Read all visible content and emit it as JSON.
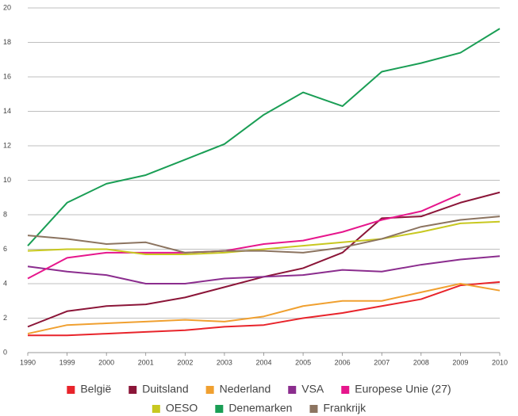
{
  "chart_data": {
    "type": "line",
    "categories": [
      "1990",
      "1999",
      "2000",
      "2001",
      "2002",
      "2003",
      "2004",
      "2005",
      "2006",
      "2007",
      "2008",
      "2009",
      "2010"
    ],
    "series": [
      {
        "name": "België",
        "color": "#e8242b",
        "values": [
          1.0,
          1.0,
          1.1,
          1.2,
          1.3,
          1.5,
          1.6,
          2.0,
          2.3,
          2.7,
          3.1,
          3.9,
          4.1
        ]
      },
      {
        "name": "Duitsland",
        "color": "#8b1538",
        "values": [
          1.5,
          2.4,
          2.7,
          2.8,
          3.2,
          3.8,
          4.4,
          4.9,
          5.8,
          7.8,
          7.9,
          8.7,
          9.3
        ]
      },
      {
        "name": "Nederland",
        "color": "#f0a030",
        "values": [
          1.1,
          1.6,
          1.7,
          1.8,
          1.9,
          1.8,
          2.1,
          2.7,
          3.0,
          3.0,
          3.5,
          4.0,
          3.6
        ]
      },
      {
        "name": "VSA",
        "color": "#8b2d8e",
        "values": [
          5.0,
          4.7,
          4.5,
          4.0,
          4.0,
          4.3,
          4.4,
          4.5,
          4.8,
          4.7,
          5.1,
          5.4,
          5.6
        ]
      },
      {
        "name": "Europese Unie (27)",
        "color": "#e6168c",
        "values": [
          4.3,
          5.5,
          5.8,
          5.8,
          5.8,
          5.9,
          6.3,
          6.5,
          7.0,
          7.7,
          8.2,
          9.2,
          null
        ]
      },
      {
        "name": "OESO",
        "color": "#c8c820",
        "values": [
          5.9,
          6.0,
          6.0,
          5.7,
          5.7,
          5.8,
          6.0,
          6.2,
          6.4,
          6.6,
          7.0,
          7.5,
          7.6
        ]
      },
      {
        "name": "Denemarken",
        "color": "#1a9e55",
        "values": [
          6.2,
          8.7,
          9.8,
          10.3,
          11.2,
          12.1,
          13.8,
          15.1,
          14.3,
          16.3,
          16.8,
          17.4,
          18.8
        ]
      },
      {
        "name": "Frankrijk",
        "color": "#8c7460",
        "values": [
          6.8,
          6.6,
          6.3,
          6.4,
          5.8,
          5.9,
          5.9,
          5.8,
          6.1,
          6.6,
          7.3,
          7.7,
          7.9
        ]
      }
    ],
    "ylim": [
      0,
      20
    ],
    "yticks": [
      0,
      2,
      4,
      6,
      8,
      10,
      12,
      14,
      16,
      18,
      20
    ],
    "grid": true,
    "legend": "bottom"
  }
}
